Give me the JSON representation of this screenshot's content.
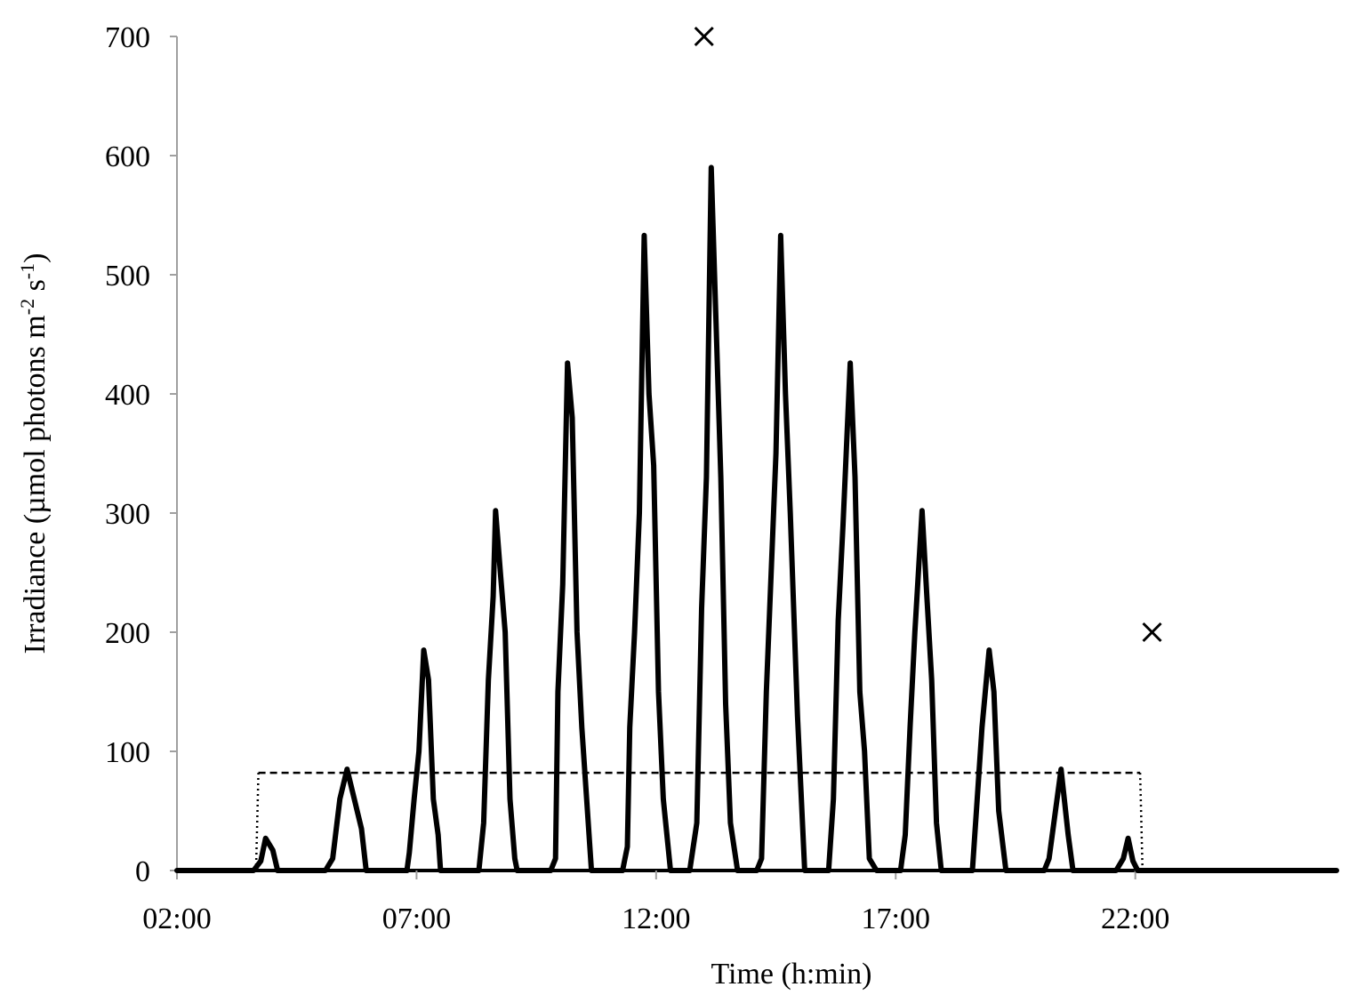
{
  "chart_data": {
    "type": "line",
    "title": "",
    "xlabel": "Time (h:min)",
    "ylabel": {
      "prefix": "Irradiance (µmol photons m",
      "sup1": "-2",
      "middle": " s",
      "sup2": "-1",
      "suffix": ")"
    },
    "x_unit": "hours",
    "xlim": [
      2,
      26.2
    ],
    "ylim": [
      0,
      700
    ],
    "x_ticks": [
      {
        "value": 2,
        "label": "02:00"
      },
      {
        "value": 7,
        "label": "07:00"
      },
      {
        "value": 12,
        "label": "12:00"
      },
      {
        "value": 17,
        "label": "17:00"
      },
      {
        "value": 22,
        "label": "22:00"
      }
    ],
    "y_ticks": [
      0,
      100,
      200,
      300,
      400,
      500,
      600,
      700
    ],
    "grid": false,
    "legend": "none",
    "series": [
      {
        "style": "solid-thick",
        "color": "#000000",
        "points": [
          [
            2.0,
            0
          ],
          [
            3.6,
            0
          ],
          [
            3.75,
            8
          ],
          [
            3.85,
            27
          ],
          [
            4.0,
            17
          ],
          [
            4.1,
            0
          ],
          [
            5.1,
            0
          ],
          [
            5.25,
            10
          ],
          [
            5.4,
            60
          ],
          [
            5.55,
            85
          ],
          [
            5.7,
            60
          ],
          [
            5.85,
            35
          ],
          [
            5.95,
            0
          ],
          [
            6.8,
            0
          ],
          [
            6.85,
            15
          ],
          [
            6.95,
            60
          ],
          [
            7.05,
            100
          ],
          [
            7.15,
            185
          ],
          [
            7.25,
            160
          ],
          [
            7.35,
            60
          ],
          [
            7.45,
            30
          ],
          [
            7.5,
            0
          ],
          [
            8.3,
            0
          ],
          [
            8.4,
            40
          ],
          [
            8.5,
            160
          ],
          [
            8.6,
            230
          ],
          [
            8.65,
            302
          ],
          [
            8.75,
            250
          ],
          [
            8.85,
            200
          ],
          [
            8.95,
            60
          ],
          [
            9.05,
            10
          ],
          [
            9.1,
            0
          ],
          [
            9.8,
            0
          ],
          [
            9.9,
            10
          ],
          [
            9.95,
            150
          ],
          [
            10.05,
            240
          ],
          [
            10.15,
            426
          ],
          [
            10.25,
            380
          ],
          [
            10.35,
            200
          ],
          [
            10.45,
            120
          ],
          [
            10.55,
            60
          ],
          [
            10.65,
            0
          ],
          [
            11.3,
            0
          ],
          [
            11.4,
            20
          ],
          [
            11.45,
            120
          ],
          [
            11.55,
            200
          ],
          [
            11.65,
            300
          ],
          [
            11.75,
            533
          ],
          [
            11.85,
            400
          ],
          [
            11.95,
            340
          ],
          [
            12.05,
            150
          ],
          [
            12.15,
            60
          ],
          [
            12.3,
            0
          ],
          [
            12.7,
            0
          ],
          [
            12.85,
            40
          ],
          [
            12.95,
            220
          ],
          [
            13.05,
            330
          ],
          [
            13.15,
            590
          ],
          [
            13.25,
            460
          ],
          [
            13.35,
            330
          ],
          [
            13.45,
            140
          ],
          [
            13.55,
            40
          ],
          [
            13.7,
            0
          ],
          [
            14.1,
            0
          ],
          [
            14.2,
            10
          ],
          [
            14.3,
            150
          ],
          [
            14.4,
            250
          ],
          [
            14.5,
            350
          ],
          [
            14.6,
            533
          ],
          [
            14.7,
            400
          ],
          [
            14.8,
            300
          ],
          [
            14.95,
            130
          ],
          [
            15.1,
            0
          ],
          [
            15.6,
            0
          ],
          [
            15.7,
            60
          ],
          [
            15.8,
            210
          ],
          [
            15.9,
            290
          ],
          [
            16.05,
            426
          ],
          [
            16.15,
            330
          ],
          [
            16.25,
            150
          ],
          [
            16.35,
            100
          ],
          [
            16.45,
            10
          ],
          [
            16.6,
            0
          ],
          [
            17.1,
            0
          ],
          [
            17.2,
            30
          ],
          [
            17.3,
            120
          ],
          [
            17.4,
            200
          ],
          [
            17.55,
            302
          ],
          [
            17.65,
            230
          ],
          [
            17.75,
            160
          ],
          [
            17.85,
            40
          ],
          [
            17.95,
            0
          ],
          [
            18.6,
            0
          ],
          [
            18.7,
            60
          ],
          [
            18.8,
            120
          ],
          [
            18.95,
            185
          ],
          [
            19.05,
            150
          ],
          [
            19.15,
            50
          ],
          [
            19.3,
            0
          ],
          [
            20.1,
            0
          ],
          [
            20.2,
            10
          ],
          [
            20.3,
            40
          ],
          [
            20.45,
            85
          ],
          [
            20.6,
            30
          ],
          [
            20.7,
            0
          ],
          [
            21.6,
            0
          ],
          [
            21.75,
            10
          ],
          [
            21.85,
            27
          ],
          [
            21.95,
            8
          ],
          [
            22.05,
            0
          ],
          [
            26.2,
            0
          ]
        ]
      },
      {
        "style": "dashed",
        "color": "#000000",
        "points": [
          [
            3.7,
            82
          ],
          [
            22.1,
            82
          ]
        ]
      },
      {
        "style": "dotted",
        "color": "#000000",
        "points": [
          [
            3.65,
            0
          ],
          [
            3.7,
            82
          ]
        ]
      },
      {
        "style": "dotted",
        "color": "#000000",
        "points": [
          [
            22.1,
            82
          ],
          [
            22.15,
            0
          ]
        ]
      },
      {
        "style": "x-markers",
        "color": "#000000",
        "points": [
          [
            13.0,
            700
          ],
          [
            22.35,
            200
          ]
        ]
      }
    ]
  }
}
